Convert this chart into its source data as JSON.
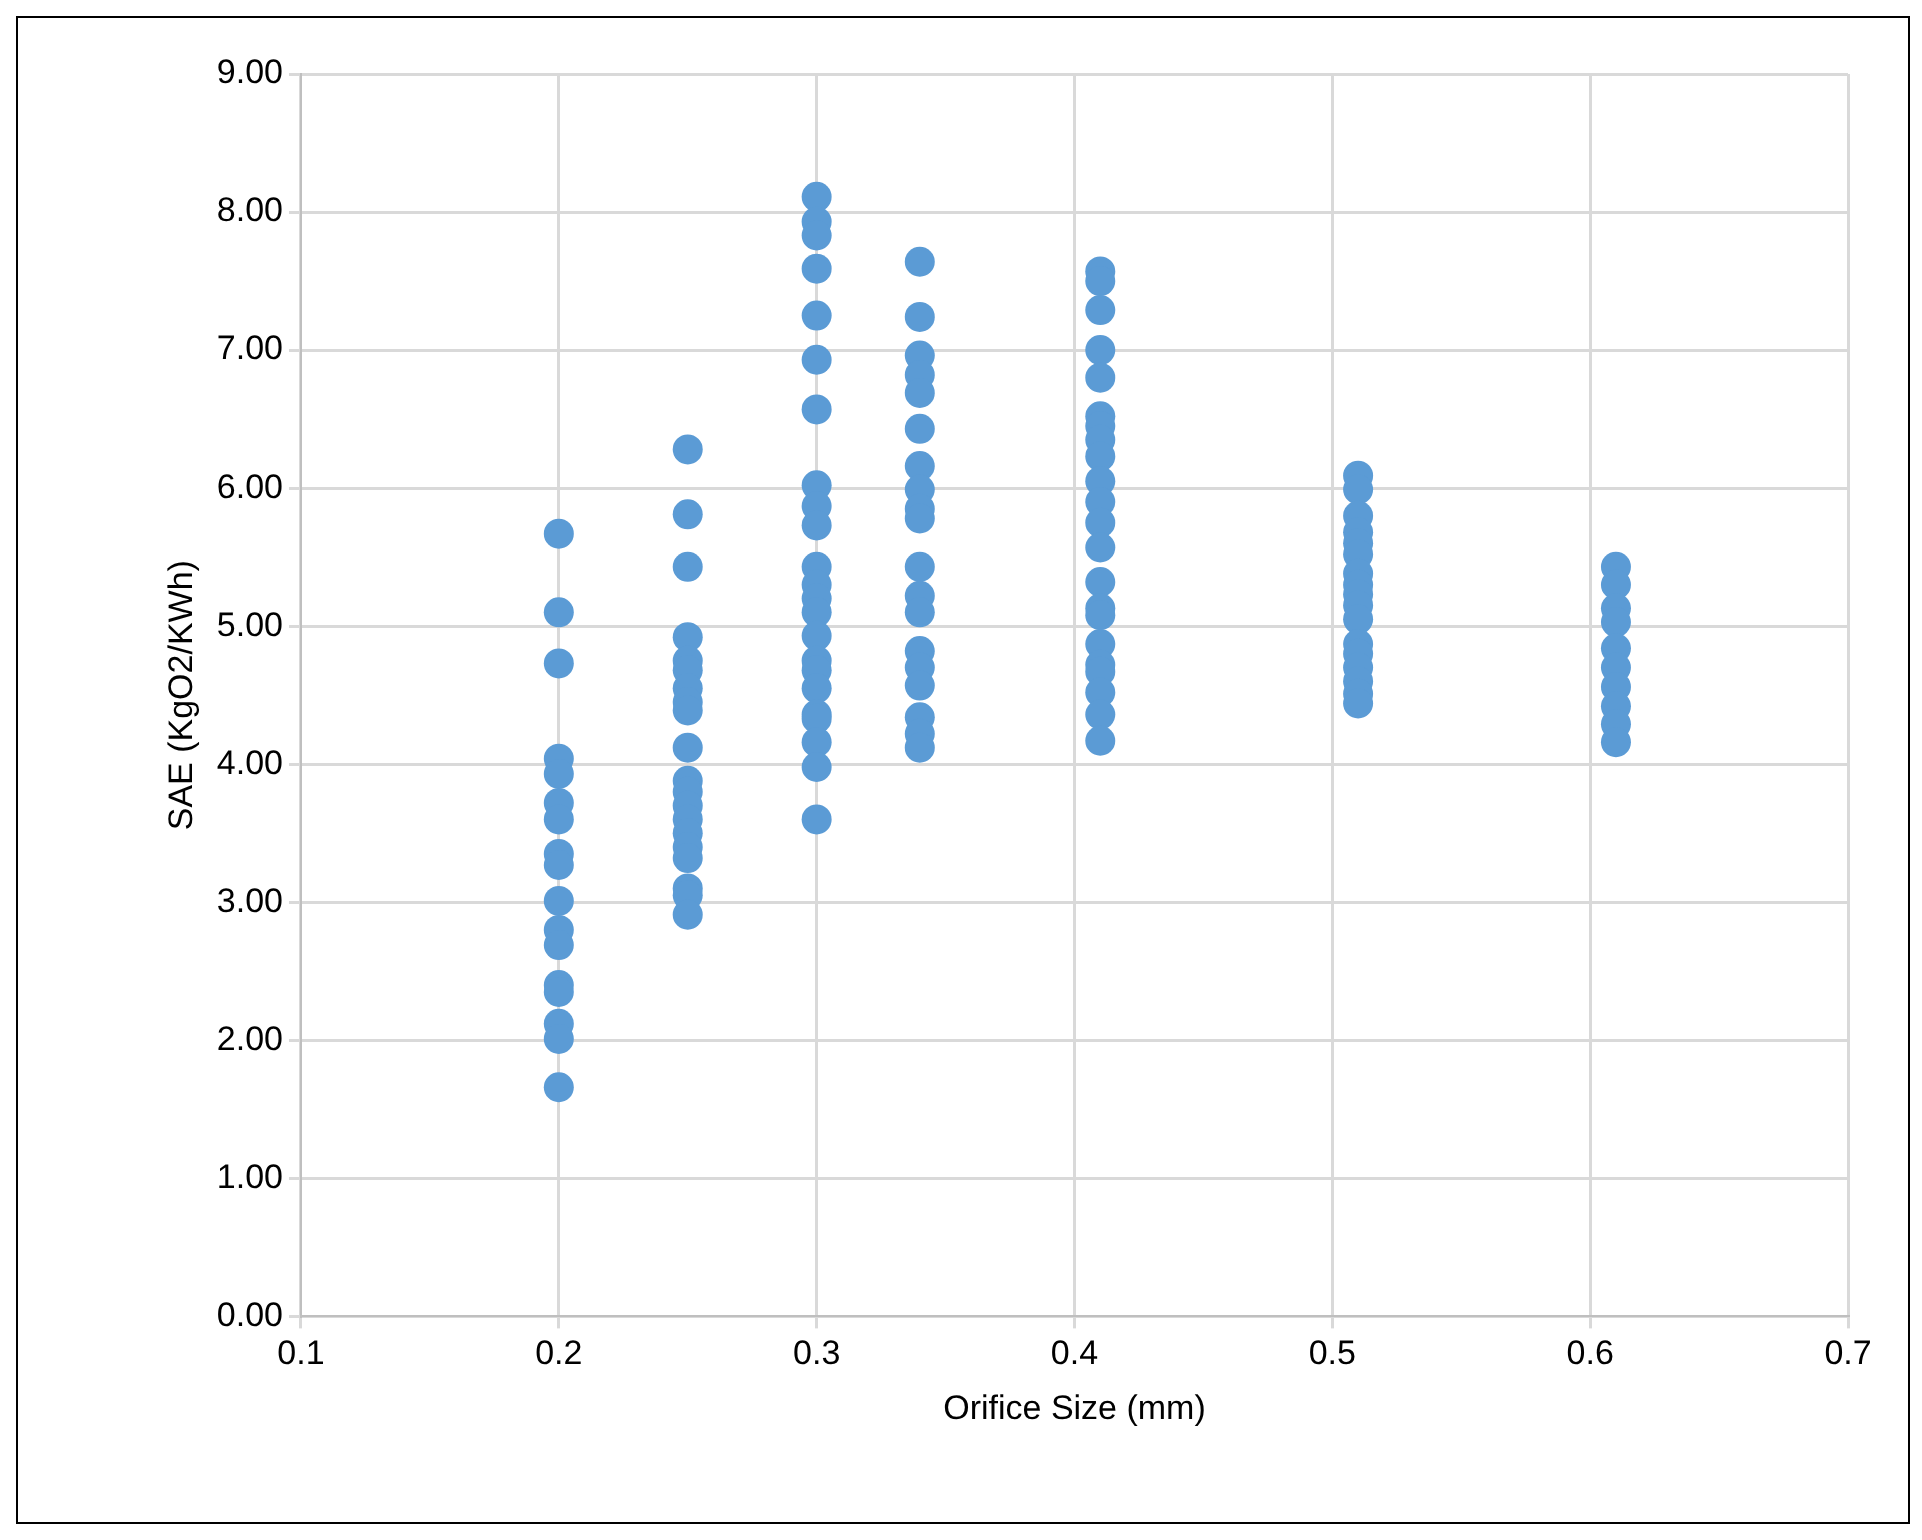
{
  "chart_data": {
    "type": "scatter",
    "xlabel": "Orifice Size (mm)",
    "ylabel": "SAE (KgO2/KWh)",
    "xlim": [
      0.1,
      0.7
    ],
    "xticks": [
      0.1,
      0.2,
      0.3,
      0.4,
      0.5,
      0.6,
      0.7
    ],
    "ylim": [
      0,
      9
    ],
    "yticks": [
      {
        "value": 0,
        "label": "0.00"
      },
      {
        "value": 1,
        "label": "1.00"
      },
      {
        "value": 2,
        "label": "2.00"
      },
      {
        "value": 3,
        "label": "3.00"
      },
      {
        "value": 4,
        "label": "4.00"
      },
      {
        "value": 5,
        "label": "5.00"
      },
      {
        "value": 6,
        "label": "6.00"
      },
      {
        "value": 7,
        "label": "7.00"
      },
      {
        "value": 8,
        "label": "8.00"
      },
      {
        "value": 9,
        "label": "9.00"
      }
    ],
    "grid": true,
    "legend": false,
    "marker": "circle",
    "series": [
      {
        "color": "#5b9bd5",
        "x": [
          0.2,
          0.2,
          0.2,
          0.2,
          0.2,
          0.2,
          0.2,
          0.2,
          0.2,
          0.2,
          0.2,
          0.2,
          0.2,
          0.2,
          0.2,
          0.2,
          0.2,
          0.25,
          0.25,
          0.25,
          0.25,
          0.25,
          0.25,
          0.25,
          0.25,
          0.25,
          0.25,
          0.25,
          0.25,
          0.25,
          0.25,
          0.25,
          0.25,
          0.25,
          0.25,
          0.25,
          0.25,
          0.3,
          0.3,
          0.3,
          0.3,
          0.3,
          0.3,
          0.3,
          0.3,
          0.3,
          0.3,
          0.3,
          0.3,
          0.3,
          0.3,
          0.3,
          0.3,
          0.3,
          0.3,
          0.3,
          0.3,
          0.3,
          0.3,
          0.3,
          0.34,
          0.34,
          0.34,
          0.34,
          0.34,
          0.34,
          0.34,
          0.34,
          0.34,
          0.34,
          0.34,
          0.34,
          0.34,
          0.34,
          0.34,
          0.34,
          0.34,
          0.34,
          0.34,
          0.41,
          0.41,
          0.41,
          0.41,
          0.41,
          0.41,
          0.41,
          0.41,
          0.41,
          0.41,
          0.41,
          0.41,
          0.41,
          0.41,
          0.41,
          0.41,
          0.41,
          0.41,
          0.41,
          0.41,
          0.41,
          0.41,
          0.51,
          0.51,
          0.51,
          0.51,
          0.51,
          0.51,
          0.51,
          0.51,
          0.51,
          0.51,
          0.51,
          0.51,
          0.51,
          0.51,
          0.51,
          0.51,
          0.51,
          0.61,
          0.61,
          0.61,
          0.61,
          0.61,
          0.61,
          0.61,
          0.61,
          0.61,
          0.61
        ],
        "values": [
          5.67,
          5.1,
          4.73,
          4.04,
          3.93,
          3.72,
          3.6,
          3.35,
          3.27,
          3.01,
          2.8,
          2.69,
          2.4,
          2.35,
          2.12,
          2.01,
          1.66,
          6.28,
          5.81,
          5.43,
          4.92,
          4.75,
          4.68,
          4.55,
          4.45,
          4.39,
          4.12,
          3.88,
          3.8,
          3.7,
          3.6,
          3.5,
          3.4,
          3.32,
          3.1,
          3.05,
          2.91,
          8.11,
          7.93,
          7.83,
          7.59,
          7.25,
          6.93,
          6.57,
          6.02,
          5.87,
          5.73,
          5.43,
          5.3,
          5.2,
          5.1,
          4.93,
          4.75,
          4.68,
          4.55,
          4.36,
          4.33,
          4.16,
          3.98,
          3.6,
          7.64,
          7.24,
          6.96,
          6.82,
          6.69,
          6.43,
          6.16,
          5.99,
          5.85,
          5.78,
          5.43,
          5.22,
          5.1,
          4.82,
          4.7,
          4.57,
          4.34,
          4.22,
          4.12,
          7.57,
          7.5,
          7.29,
          7.0,
          6.8,
          6.52,
          6.45,
          6.35,
          6.23,
          6.05,
          5.9,
          5.75,
          5.57,
          5.32,
          5.13,
          5.08,
          4.87,
          4.72,
          4.67,
          4.52,
          4.36,
          4.17,
          6.09,
          5.99,
          5.8,
          5.68,
          5.6,
          5.52,
          5.38,
          5.3,
          5.23,
          5.15,
          5.05,
          4.87,
          4.8,
          4.7,
          4.6,
          4.51,
          4.44,
          5.43,
          5.3,
          5.13,
          5.03,
          4.84,
          4.7,
          4.56,
          4.42,
          4.29,
          4.16
        ]
      }
    ]
  }
}
